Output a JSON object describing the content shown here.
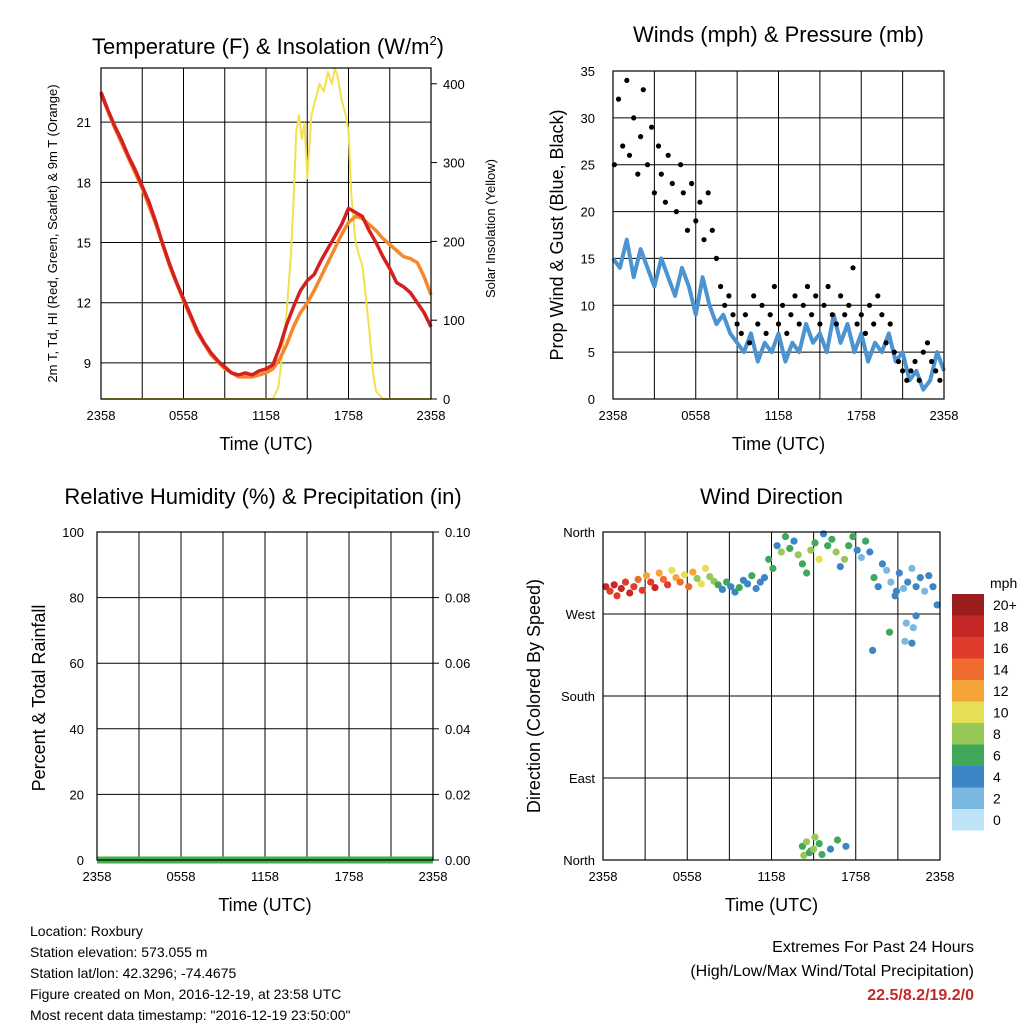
{
  "info": {
    "location": "Location: Roxbury",
    "elevation": "Station elevation: 573.055 m",
    "latlon": "Station lat/lon: 42.3296; -74.4675",
    "created": "Figure created on Mon, 2016-12-19, at 23:58 UTC",
    "timestamp": "Most recent data timestamp: \"2016-12-19 23:50:00\""
  },
  "extremes": {
    "line1": "Extremes For Past 24 Hours",
    "line2": "(High/Low/Max Wind/Total Precipitation)",
    "values": "22.5/8.2/19.2/0"
  },
  "colors": {
    "red": "#d42020",
    "scarlet": "#c62828",
    "orange": "#f5882a",
    "yellow": "#f4e04d",
    "blue": "#4b93d1",
    "green": "#3fb04a",
    "black": "#000000"
  },
  "chart_data": [
    {
      "type": "line",
      "title": "Temperature (F) & Insolation (W/m",
      "title_sup": "2",
      "title_end": ")",
      "xlabel": "Time (UTC)",
      "ylabel": "2m T, Td, HI (Red, Green, Scarlet) & 9m T (Orange)",
      "y2label": "Solar Insolation (Yellow)",
      "xticks": [
        "2358",
        "0558",
        "1158",
        "1758",
        "2358"
      ],
      "x_range": [
        0,
        24
      ],
      "ylim": [
        7.2,
        23.7
      ],
      "yticks": [
        9,
        12,
        15,
        18,
        21
      ],
      "y2lim": [
        0,
        420
      ],
      "y2ticks": [
        0,
        100,
        200,
        300,
        400
      ],
      "series": [
        {
          "name": "2m T",
          "color": "red",
          "x": [
            0,
            0.5,
            1,
            1.5,
            2,
            2.5,
            3,
            3.5,
            4,
            4.5,
            5,
            5.5,
            6,
            6.5,
            7,
            7.5,
            8,
            8.5,
            9,
            9.5,
            10,
            10.5,
            11,
            11.5,
            12,
            12.5,
            13,
            13.5,
            14,
            14.5,
            15,
            15.5,
            16,
            16.5,
            17,
            17.5,
            18,
            18.5,
            19,
            19.5,
            20,
            20.5,
            21,
            21.5,
            22,
            22.5,
            23,
            23.5,
            24
          ],
          "values": [
            22.5,
            21.6,
            20.8,
            20.1,
            19.3,
            18.6,
            17.8,
            17.0,
            16.0,
            14.9,
            13.9,
            13.0,
            12.2,
            11.4,
            10.6,
            10.0,
            9.5,
            9.1,
            8.8,
            8.5,
            8.4,
            8.5,
            8.4,
            8.6,
            8.7,
            8.9,
            9.8,
            10.9,
            11.8,
            12.6,
            13.1,
            13.4,
            14.1,
            14.7,
            15.3,
            15.9,
            16.7,
            16.5,
            16.3,
            15.6,
            15.0,
            14.3,
            13.7,
            13.0,
            12.8,
            12.5,
            12.0,
            11.5,
            10.8
          ]
        },
        {
          "name": "9m T",
          "color": "orange",
          "x": [
            0,
            1,
            2,
            3,
            4,
            5,
            6,
            7,
            8,
            9,
            10,
            11,
            12,
            12.5,
            13,
            13.5,
            14,
            14.5,
            15,
            15.5,
            16,
            16.5,
            17,
            17.5,
            18,
            18.5,
            19,
            19.5,
            20,
            20.5,
            21,
            21.5,
            22,
            22.5,
            23,
            23.5,
            24
          ],
          "values": [
            22.4,
            20.7,
            19.2,
            17.7,
            15.9,
            13.8,
            12.1,
            10.5,
            9.4,
            8.7,
            8.3,
            8.3,
            8.5,
            8.7,
            9.2,
            9.9,
            10.8,
            11.5,
            12.0,
            12.6,
            13.3,
            14.0,
            14.7,
            15.4,
            16.0,
            16.3,
            16.2,
            15.9,
            15.6,
            15.2,
            14.9,
            14.6,
            14.3,
            14.2,
            14.0,
            13.3,
            12.4
          ]
        },
        {
          "name": "Solar Insolation",
          "color": "yellow",
          "axis": "y2",
          "x": [
            0,
            12.5,
            12.9,
            13.2,
            13.5,
            13.8,
            14.0,
            14.2,
            14.4,
            14.6,
            14.8,
            15.0,
            15.3,
            15.6,
            15.9,
            16.2,
            16.5,
            16.8,
            17.0,
            17.2,
            17.5,
            17.8,
            18.0,
            18.2,
            18.5,
            18.8,
            19.0,
            19.2,
            19.5,
            19.8,
            20.0,
            20.5,
            24
          ],
          "values": [
            0,
            0,
            15,
            60,
            110,
            180,
            250,
            340,
            360,
            330,
            350,
            280,
            360,
            380,
            400,
            390,
            415,
            400,
            420,
            410,
            380,
            360,
            340,
            260,
            200,
            180,
            170,
            140,
            90,
            30,
            10,
            0,
            0
          ]
        }
      ]
    },
    {
      "type": "line",
      "title": "Winds (mph) & Pressure (mb)",
      "xlabel": "Time (UTC)",
      "ylabel": "Prop Wind & Gust (Blue, Black)",
      "xticks": [
        "2358",
        "0558",
        "1158",
        "1758",
        "2358"
      ],
      "x_range": [
        0,
        24
      ],
      "ylim": [
        0,
        35
      ],
      "yticks": [
        0,
        5,
        10,
        15,
        20,
        25,
        30,
        35
      ],
      "series": [
        {
          "name": "Prop Wind",
          "color": "blue",
          "x": [
            0,
            0.5,
            1,
            1.5,
            2,
            2.5,
            3,
            3.5,
            4,
            4.5,
            5,
            5.5,
            6,
            6.5,
            7,
            7.5,
            8,
            8.5,
            9,
            9.5,
            10,
            10.5,
            11,
            11.5,
            12,
            12.5,
            13,
            13.5,
            14,
            14.5,
            15,
            15.5,
            16,
            16.5,
            17,
            17.5,
            18,
            18.5,
            19,
            19.5,
            20,
            20.5,
            21,
            21.5,
            22,
            22.5,
            23,
            23.5,
            24
          ],
          "values": [
            15,
            14,
            17,
            13,
            16,
            14,
            12,
            15,
            13,
            11,
            14,
            12,
            9,
            13,
            10,
            8,
            9,
            7,
            6,
            5,
            7,
            4,
            6,
            5,
            7,
            4,
            6,
            5,
            8,
            6,
            7,
            5,
            9,
            6,
            8,
            5,
            7,
            4,
            6,
            5,
            7,
            4,
            5,
            2,
            3,
            1,
            2,
            5,
            3
          ]
        },
        {
          "name": "Gust",
          "color": "black",
          "marker": "dot",
          "x": [
            0.1,
            0.4,
            0.7,
            1.0,
            1.2,
            1.5,
            1.8,
            2.0,
            2.2,
            2.5,
            2.8,
            3.0,
            3.3,
            3.5,
            3.8,
            4.0,
            4.3,
            4.6,
            4.9,
            5.1,
            5.4,
            5.7,
            6.0,
            6.3,
            6.6,
            6.9,
            7.2,
            7.5,
            7.8,
            8.1,
            8.4,
            8.7,
            9.0,
            9.3,
            9.6,
            9.9,
            10.2,
            10.5,
            10.8,
            11.1,
            11.4,
            11.7,
            12.0,
            12.3,
            12.6,
            12.9,
            13.2,
            13.5,
            13.8,
            14.1,
            14.4,
            14.7,
            15.0,
            15.3,
            15.6,
            15.9,
            16.2,
            16.5,
            16.8,
            17.1,
            17.4,
            17.7,
            18.0,
            18.3,
            18.6,
            18.9,
            19.2,
            19.5,
            19.8,
            20.1,
            20.4,
            20.7,
            21.0,
            21.3,
            21.6,
            21.9,
            22.2,
            22.5,
            22.8,
            23.1,
            23.4,
            23.7
          ],
          "values": [
            25,
            32,
            27,
            34,
            26,
            30,
            24,
            28,
            33,
            25,
            29,
            22,
            27,
            24,
            21,
            26,
            23,
            20,
            25,
            22,
            18,
            23,
            19,
            21,
            17,
            22,
            18,
            15,
            12,
            10,
            11,
            9,
            8,
            7,
            9,
            6,
            11,
            8,
            10,
            7,
            9,
            12,
            8,
            10,
            7,
            9,
            11,
            8,
            10,
            12,
            9,
            11,
            8,
            10,
            12,
            9,
            8,
            11,
            9,
            10,
            14,
            8,
            9,
            7,
            10,
            8,
            11,
            9,
            6,
            8,
            5,
            4,
            3,
            2,
            3,
            4,
            2,
            5,
            6,
            4,
            3,
            2
          ]
        }
      ]
    },
    {
      "type": "line",
      "title": "Relative Humidity (%) & Precipitation (in)",
      "xlabel": "Time (UTC)",
      "ylabel": "Percent & Total Rainfall",
      "xticks": [
        "2358",
        "0558",
        "1158",
        "1758",
        "2358"
      ],
      "x_range": [
        0,
        24
      ],
      "ylim": [
        0,
        100
      ],
      "yticks": [
        0,
        20,
        40,
        60,
        80,
        100
      ],
      "y2lim": [
        0,
        0.1
      ],
      "y2ticks": [
        "0.00",
        "0.02",
        "0.04",
        "0.06",
        "0.08",
        "0.10"
      ],
      "series": [
        {
          "name": "Total Rainfall",
          "color": "green",
          "axis": "y2",
          "x": [
            0,
            24
          ],
          "values": [
            0,
            0
          ]
        }
      ]
    },
    {
      "type": "scatter",
      "title": "Wind Direction",
      "xlabel": "Time (UTC)",
      "ylabel": "Direction (Colored By Speed)",
      "xticks": [
        "2358",
        "0558",
        "1158",
        "1758",
        "2358"
      ],
      "x_range": [
        0,
        24
      ],
      "ylim": [
        0,
        360
      ],
      "yticks": [
        "North",
        "East",
        "South",
        "West",
        "North"
      ],
      "legend": {
        "title": "mph",
        "labels": [
          "20+",
          "18",
          "16",
          "14",
          "12",
          "10",
          "8",
          "6",
          "4",
          "2",
          "0"
        ],
        "colors": [
          "#9b1c1c",
          "#c62828",
          "#e03c2c",
          "#ef6a2e",
          "#f6a43a",
          "#e5df56",
          "#97c757",
          "#3fa85a",
          "#3d86c6",
          "#7ab8e2",
          "#bfe3f6"
        ]
      },
      "points": {
        "x": [
          0.2,
          0.5,
          0.8,
          1.0,
          1.3,
          1.6,
          1.9,
          2.2,
          2.5,
          2.8,
          3.1,
          3.4,
          3.7,
          4.0,
          4.3,
          4.6,
          4.9,
          5.2,
          5.5,
          5.8,
          6.1,
          6.4,
          6.7,
          7.0,
          7.3,
          7.6,
          7.9,
          8.2,
          8.5,
          8.8,
          9.1,
          9.4,
          9.7,
          10.0,
          10.3,
          10.6,
          10.9,
          11.2,
          11.5,
          11.8,
          12.1,
          12.4,
          12.7,
          13.0,
          13.3,
          13.6,
          13.9,
          14.2,
          14.5,
          14.8,
          15.1,
          15.4,
          15.7,
          16.0,
          16.3,
          16.6,
          16.9,
          17.2,
          17.5,
          17.8,
          18.1,
          18.4,
          18.7,
          19.0,
          19.3,
          19.6,
          19.9,
          20.2,
          20.5,
          20.8,
          21.1,
          21.4,
          21.7,
          22.0,
          22.3,
          22.6,
          22.9,
          23.2,
          23.5,
          23.8,
          14.2,
          14.5,
          14.8,
          15.1,
          15.4,
          16.2,
          16.7,
          17.3,
          19.2,
          20.4,
          21.5,
          14.3,
          14.7,
          15.0,
          15.6,
          20.9,
          21.6,
          22.1,
          22.3,
          22.0
        ],
        "values": [
          300,
          295,
          302,
          290,
          298,
          305,
          293,
          300,
          308,
          296,
          312,
          305,
          299,
          315,
          308,
          302,
          318,
          310,
          305,
          313,
          300,
          316,
          309,
          303,
          320,
          311,
          306,
          302,
          297,
          305,
          300,
          294,
          299,
          307,
          303,
          312,
          298,
          305,
          310,
          330,
          320,
          345,
          338,
          355,
          342,
          350,
          335,
          325,
          315,
          340,
          348,
          330,
          358,
          345,
          352,
          338,
          322,
          330,
          345,
          355,
          340,
          332,
          350,
          338,
          310,
          300,
          325,
          318,
          305,
          290,
          315,
          298,
          305,
          320,
          300,
          310,
          295,
          312,
          300,
          280,
          15,
          20,
          10,
          25,
          18,
          12,
          22,
          15,
          230,
          250,
          240,
          5,
          8,
          12,
          6,
          295,
          260,
          255,
          268,
          238
        ],
        "speeds": [
          17,
          16,
          18,
          15,
          17,
          16,
          18,
          15,
          14,
          16,
          12,
          15,
          17,
          11,
          13,
          16,
          10,
          12,
          14,
          9,
          13,
          11,
          8,
          10,
          9,
          7,
          8,
          6,
          4,
          5,
          4,
          3,
          5,
          4,
          3,
          5,
          4,
          3,
          4,
          5,
          6,
          4,
          7,
          5,
          6,
          4,
          8,
          6,
          5,
          7,
          6,
          9,
          4,
          6,
          5,
          7,
          4,
          8,
          6,
          5,
          4,
          2,
          5,
          3,
          6,
          4,
          3,
          2,
          1,
          3,
          4,
          2,
          3,
          1,
          4,
          3,
          2,
          4,
          3,
          4,
          6,
          7,
          5,
          8,
          6,
          4,
          5,
          3,
          4,
          5,
          2,
          7,
          6,
          8,
          5,
          3,
          1,
          2,
          4,
          3
        ]
      }
    }
  ]
}
